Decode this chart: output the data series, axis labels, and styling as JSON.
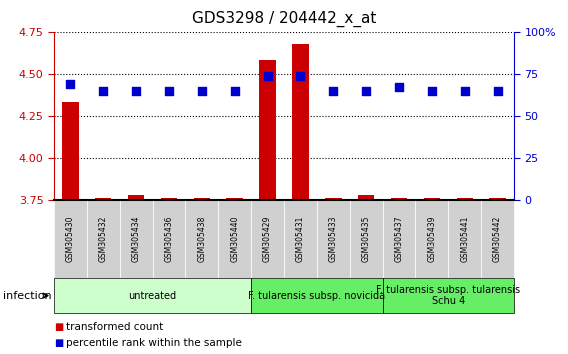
{
  "title": "GDS3298 / 204442_x_at",
  "samples": [
    "GSM305430",
    "GSM305432",
    "GSM305434",
    "GSM305436",
    "GSM305438",
    "GSM305440",
    "GSM305429",
    "GSM305431",
    "GSM305433",
    "GSM305435",
    "GSM305437",
    "GSM305439",
    "GSM305441",
    "GSM305442"
  ],
  "transformed_count": [
    4.33,
    3.76,
    3.78,
    3.76,
    3.76,
    3.76,
    4.58,
    4.68,
    3.76,
    3.78,
    3.76,
    3.76,
    3.76,
    3.76
  ],
  "percentile_rank": [
    69,
    65,
    65,
    65,
    65,
    65,
    74,
    74,
    65,
    65,
    67,
    65,
    65,
    65
  ],
  "ylim_left": [
    3.75,
    4.75
  ],
  "ylim_right": [
    0,
    100
  ],
  "yticks_left": [
    3.75,
    4.0,
    4.25,
    4.5,
    4.75
  ],
  "yticks_right": [
    0,
    25,
    50,
    75,
    100
  ],
  "bar_color": "#cc0000",
  "dot_color": "#0000cc",
  "bar_width": 0.5,
  "dot_size": 30,
  "dot_marker": "s",
  "groups": [
    {
      "label": "untreated",
      "start": 0,
      "end": 5,
      "color": "#ccffcc"
    },
    {
      "label": "F. tularensis subsp. novicida",
      "start": 6,
      "end": 9,
      "color": "#66ee66"
    },
    {
      "label": "F. tularensis subsp. tularensis\nSchu 4",
      "start": 10,
      "end": 13,
      "color": "#66ee66"
    }
  ],
  "infection_label": "infection",
  "legend_items": [
    {
      "label": "transformed count",
      "color": "#cc0000"
    },
    {
      "label": "percentile rank within the sample",
      "color": "#0000cc"
    }
  ],
  "bg_color": "#ffffff",
  "tick_color_left": "#cc0000",
  "tick_color_right": "#0000cc",
  "title_fontsize": 11,
  "tick_fontsize": 8,
  "sample_fontsize": 5.5,
  "group_fontsize": 7,
  "legend_fontsize": 7.5,
  "infection_fontsize": 8
}
